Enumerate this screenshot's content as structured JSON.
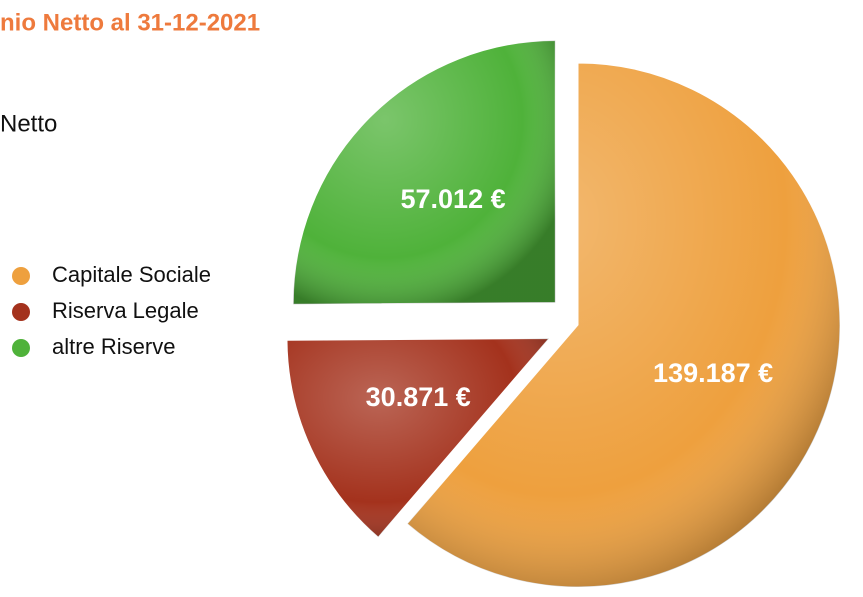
{
  "chart_data": {
    "type": "pie",
    "title": "nio Netto al 31-12-2021",
    "subtitle": "Netto",
    "categories": [
      "Capitale Sociale",
      "Riserva Legale",
      "altre Riserve"
    ],
    "values": [
      139187,
      30871,
      57012
    ],
    "value_labels": [
      "139.187 €",
      "30.871 €",
      "57.012 €"
    ],
    "colors": [
      "#eea03e",
      "#a4321d",
      "#4fb23a"
    ],
    "legend": "left"
  }
}
